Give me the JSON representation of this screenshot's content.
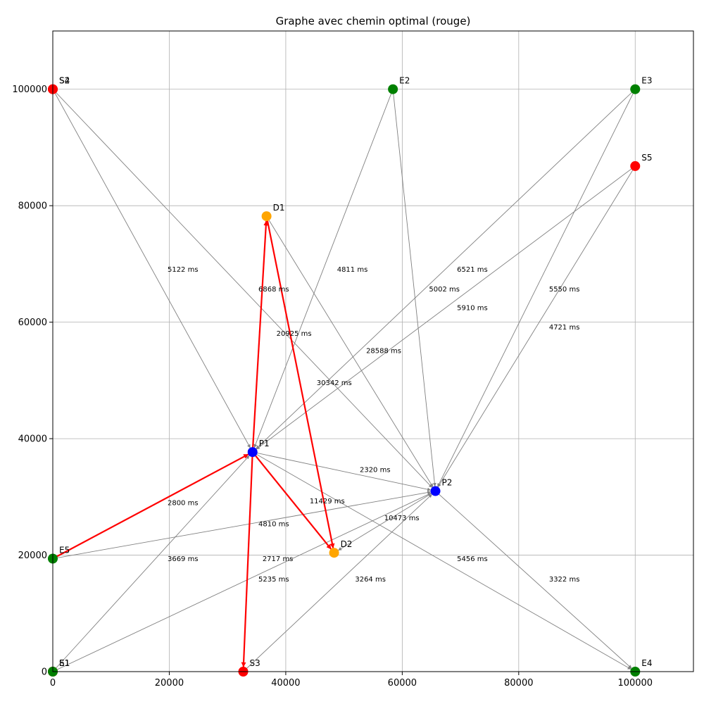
{
  "chart_data": {
    "type": "network-graph",
    "title": "Graphe avec chemin optimal (rouge)",
    "xlim": [
      0,
      110000
    ],
    "ylim": [
      0,
      110000
    ],
    "x_ticks": [
      0,
      20000,
      40000,
      60000,
      80000,
      100000
    ],
    "y_ticks": [
      0,
      20000,
      40000,
      60000,
      80000,
      100000
    ],
    "x_tick_labels": [
      "0",
      "20000",
      "40000",
      "60000",
      "80000",
      "100000"
    ],
    "y_tick_labels": [
      "0",
      "20000",
      "40000",
      "60000",
      "80000",
      "100000"
    ],
    "grid": true,
    "colors": {
      "source": "#ff0000",
      "entry": "#008000",
      "depot": "#ffa500",
      "hub": "#0000ff",
      "edge": "#808080",
      "optimal_path": "#ff0000"
    },
    "nodes": [
      {
        "id": "S2",
        "x": 0,
        "y": 100000,
        "type": "source",
        "label": "S2"
      },
      {
        "id": "S4",
        "x": 0,
        "y": 100000,
        "type": "source",
        "label": "S4"
      },
      {
        "id": "E2",
        "x": 58400,
        "y": 100000,
        "type": "entry",
        "label": "E2"
      },
      {
        "id": "E3",
        "x": 100000,
        "y": 100000,
        "type": "entry",
        "label": "E3"
      },
      {
        "id": "S5",
        "x": 100000,
        "y": 86800,
        "type": "source",
        "label": "S5"
      },
      {
        "id": "D1",
        "x": 36700,
        "y": 78200,
        "type": "depot",
        "label": "D1"
      },
      {
        "id": "P1",
        "x": 34300,
        "y": 37700,
        "type": "hub",
        "label": "P1"
      },
      {
        "id": "P2",
        "x": 65700,
        "y": 31000,
        "type": "hub",
        "label": "P2"
      },
      {
        "id": "D2",
        "x": 48300,
        "y": 20400,
        "type": "depot",
        "label": "D2"
      },
      {
        "id": "E5",
        "x": 0,
        "y": 19400,
        "type": "entry",
        "label": "E5"
      },
      {
        "id": "S1",
        "x": 0,
        "y": 0,
        "type": "source",
        "label": "S1"
      },
      {
        "id": "E1",
        "x": 0,
        "y": 0,
        "type": "entry",
        "label": "E1"
      },
      {
        "id": "S3",
        "x": 32700,
        "y": 0,
        "type": "source",
        "label": "S3"
      },
      {
        "id": "E4",
        "x": 100000,
        "y": 0,
        "type": "entry",
        "label": "E4"
      }
    ],
    "edges": [
      {
        "from": "S2",
        "to": "P1",
        "label": "5122 ms",
        "lx": 19700,
        "ly": 69100,
        "optimal": false
      },
      {
        "from": "S4",
        "to": "P2",
        "label": "6868 ms",
        "lx": 35300,
        "ly": 65700,
        "optimal": false
      },
      {
        "from": "E2",
        "to": "P1",
        "label": "4811 ms",
        "lx": 48800,
        "ly": 69100,
        "optimal": false
      },
      {
        "from": "E2",
        "to": "P2",
        "label": "5002 ms",
        "lx": 64600,
        "ly": 65700,
        "optimal": false
      },
      {
        "from": "E3",
        "to": "P1",
        "label": "6521 ms",
        "lx": 69400,
        "ly": 69100,
        "optimal": false
      },
      {
        "from": "E3",
        "to": "P2",
        "label": "5550 ms",
        "lx": 85200,
        "ly": 65700,
        "optimal": false
      },
      {
        "from": "S5",
        "to": "P1",
        "label": "5910 ms",
        "lx": 69400,
        "ly": 62500,
        "optimal": false
      },
      {
        "from": "S5",
        "to": "P2",
        "label": "4721 ms",
        "lx": 85200,
        "ly": 59200,
        "optimal": false
      },
      {
        "from": "D1",
        "to": "P2",
        "label": "28588 ms",
        "lx": 53800,
        "ly": 55100,
        "optimal": false
      },
      {
        "from": "P1",
        "to": "P2",
        "label": "2320 ms",
        "lx": 52700,
        "ly": 34700,
        "optimal": false
      },
      {
        "from": "E5",
        "to": "P2",
        "label": "4810 ms",
        "lx": 35300,
        "ly": 25400,
        "optimal": false
      },
      {
        "from": "S1",
        "to": "P1",
        "label": "3669 ms",
        "lx": 19700,
        "ly": 19400,
        "optimal": false
      },
      {
        "from": "E1",
        "to": "P2",
        "label": "5235 ms",
        "lx": 35300,
        "ly": 15900,
        "optimal": false
      },
      {
        "from": "S3",
        "to": "P2",
        "label": "3264 ms",
        "lx": 51900,
        "ly": 15900,
        "optimal": false
      },
      {
        "from": "P1",
        "to": "E4",
        "label": "5456 ms",
        "lx": 69400,
        "ly": 19400,
        "optimal": false
      },
      {
        "from": "P2",
        "to": "E4",
        "label": "3322 ms",
        "lx": 85200,
        "ly": 15900,
        "optimal": false
      },
      {
        "from": "P2",
        "to": "D2",
        "label": "10473 ms",
        "lx": 56900,
        "ly": 26400,
        "optimal": false
      },
      {
        "from": "E5",
        "to": "P1",
        "label": "2800 ms",
        "lx": 19700,
        "ly": 29000,
        "optimal": true
      },
      {
        "from": "P1",
        "to": "D1",
        "label": "20925 ms",
        "lx": 38400,
        "ly": 58100,
        "optimal": true
      },
      {
        "from": "D1",
        "to": "D2",
        "label": "30342 ms",
        "lx": 45300,
        "ly": 49600,
        "optimal": true
      },
      {
        "from": "P1",
        "to": "D2",
        "label": "11429 ms",
        "lx": 44100,
        "ly": 29300,
        "optimal": true
      },
      {
        "from": "P1",
        "to": "S3",
        "label": "2717 ms",
        "lx": 36000,
        "ly": 19400,
        "optimal": true
      }
    ]
  }
}
